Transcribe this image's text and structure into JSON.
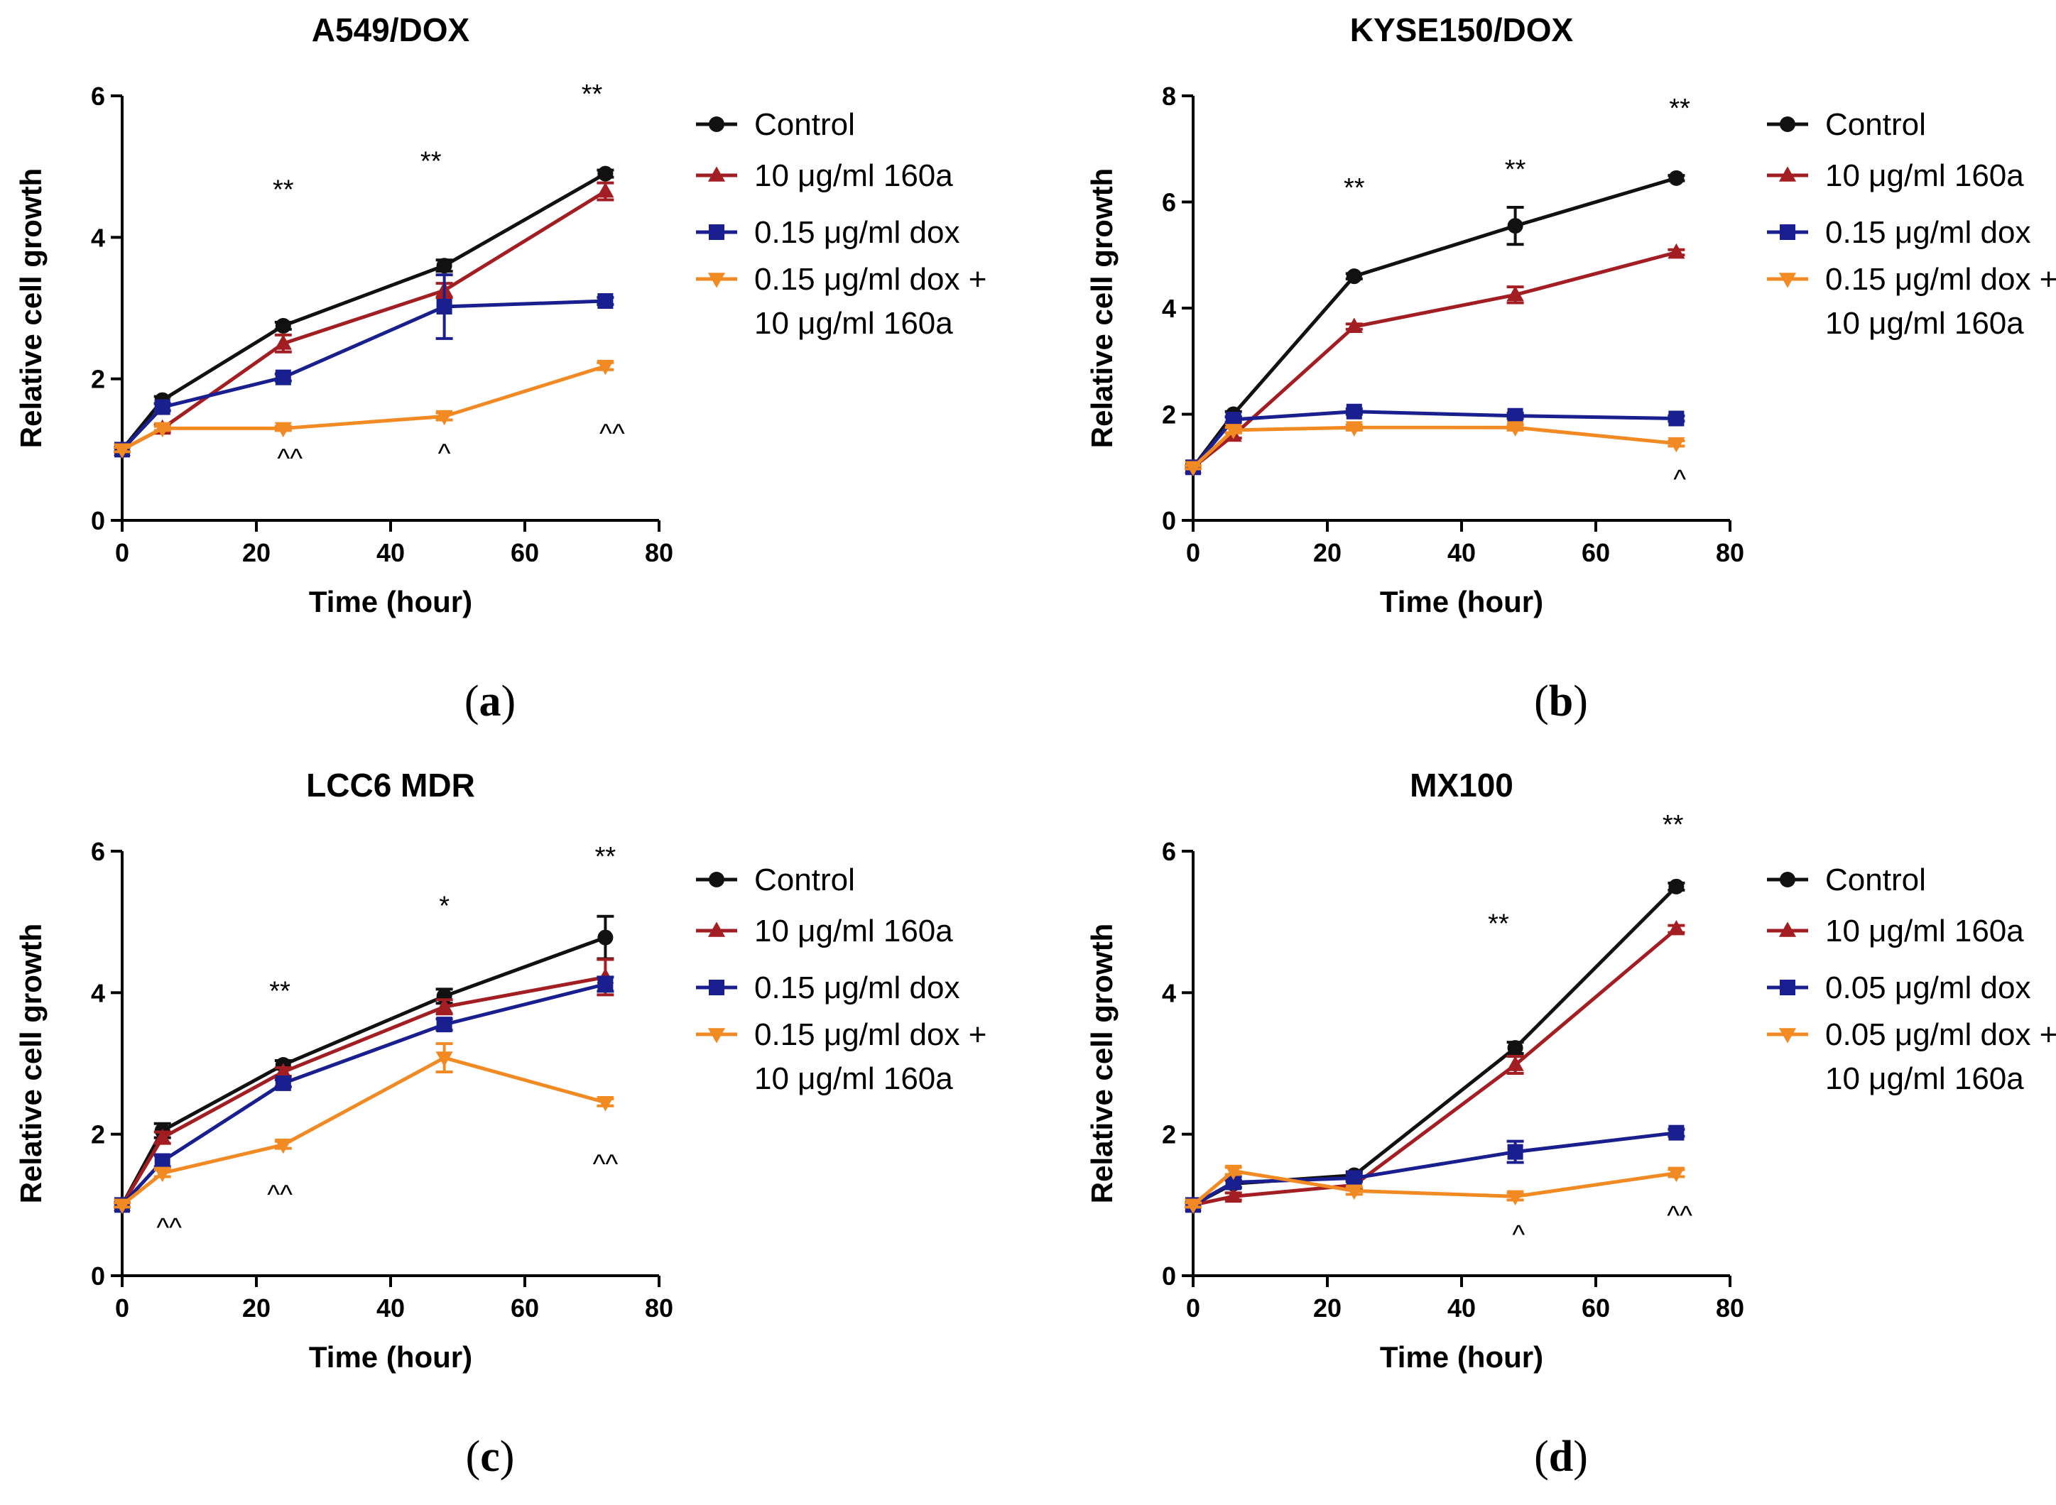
{
  "figure": {
    "colors": {
      "control": "#111111",
      "treat160a": "#a31e22",
      "dox": "#1a1f8f",
      "combo": "#f28a24",
      "axis": "#000000"
    }
  },
  "chart_data": [
    {
      "type": "line",
      "panel_label": "(a)",
      "title": "A549/DOX",
      "xlabel": "Time (hour)",
      "ylabel": "Relative cell growth",
      "xlim": [
        0,
        80
      ],
      "ylim": [
        0,
        6
      ],
      "xticks": [
        0,
        20,
        40,
        60,
        80
      ],
      "yticks": [
        0,
        2,
        4,
        6
      ],
      "x": [
        0,
        6,
        24,
        48,
        72
      ],
      "series": [
        {
          "key": "control",
          "name": "Control",
          "marker": "circle",
          "values": [
            1.0,
            1.7,
            2.75,
            3.6,
            4.9
          ],
          "err": [
            0.03,
            0.05,
            0.05,
            0.08,
            0.05
          ]
        },
        {
          "key": "treat160a",
          "name": "10 μg/ml 160a",
          "marker": "triangle-up",
          "values": [
            1.0,
            1.3,
            2.5,
            3.25,
            4.65
          ],
          "err": [
            0.03,
            0.05,
            0.12,
            0.1,
            0.12
          ]
        },
        {
          "key": "dox",
          "name": "0.15 μg/ml dox",
          "marker": "square",
          "values": [
            1.0,
            1.6,
            2.02,
            3.02,
            3.1
          ],
          "err": [
            0.03,
            0.05,
            0.05,
            0.45,
            0.05
          ]
        },
        {
          "key": "combo",
          "name": "0.15 μg/ml dox +\n10 μg/ml 160a",
          "marker": "triangle-down",
          "values": [
            1.0,
            1.3,
            1.3,
            1.47,
            2.18
          ],
          "err": [
            0.03,
            0.03,
            0.03,
            0.05,
            0.05
          ]
        }
      ],
      "annotations": [
        {
          "text": "**",
          "x": 24,
          "y": 4.55
        },
        {
          "text": "**",
          "x": 46,
          "y": 4.95
        },
        {
          "text": "**",
          "x": 70,
          "y": 5.9
        },
        {
          "text": "^^",
          "x": 25,
          "y": 0.75
        },
        {
          "text": "^",
          "x": 48,
          "y": 0.82
        },
        {
          "text": "^^",
          "x": 73,
          "y": 1.1
        }
      ]
    },
    {
      "type": "line",
      "panel_label": "(b)",
      "title": "KYSE150/DOX",
      "xlabel": "Time (hour)",
      "ylabel": "Relative cell growth",
      "xlim": [
        0,
        80
      ],
      "ylim": [
        0,
        8
      ],
      "xticks": [
        0,
        20,
        40,
        60,
        80
      ],
      "yticks": [
        0,
        2,
        4,
        6,
        8
      ],
      "x": [
        0,
        6,
        24,
        48,
        72
      ],
      "series": [
        {
          "key": "control",
          "name": "Control",
          "marker": "circle",
          "values": [
            1.0,
            2.0,
            4.6,
            5.55,
            6.45
          ],
          "err": [
            0.03,
            0.05,
            0.05,
            0.35,
            0.05
          ]
        },
        {
          "key": "treat160a",
          "name": "10 μg/ml 160a",
          "marker": "triangle-up",
          "values": [
            1.0,
            1.6,
            3.65,
            4.25,
            5.05
          ],
          "err": [
            0.03,
            0.05,
            0.05,
            0.15,
            0.05
          ]
        },
        {
          "key": "dox",
          "name": "0.15 μg/ml dox",
          "marker": "square",
          "values": [
            1.0,
            1.9,
            2.05,
            1.97,
            1.92
          ],
          "err": [
            0.03,
            0.05,
            0.05,
            0.05,
            0.05
          ]
        },
        {
          "key": "combo",
          "name": "0.15 μg/ml dox +\n10 μg/ml 160a",
          "marker": "triangle-down",
          "values": [
            1.0,
            1.7,
            1.75,
            1.75,
            1.45
          ],
          "err": [
            0.03,
            0.05,
            0.05,
            0.05,
            0.05
          ]
        }
      ],
      "annotations": [
        {
          "text": "**",
          "x": 24,
          "y": 6.1
        },
        {
          "text": "**",
          "x": 48,
          "y": 6.45
        },
        {
          "text": "**",
          "x": 72.5,
          "y": 7.6
        },
        {
          "text": "^",
          "x": 72.5,
          "y": 0.6
        }
      ]
    },
    {
      "type": "line",
      "panel_label": "(c)",
      "title": "LCC6 MDR",
      "xlabel": "Time (hour)",
      "ylabel": "Relative cell growth",
      "xlim": [
        0,
        80
      ],
      "ylim": [
        0,
        6
      ],
      "xticks": [
        0,
        20,
        40,
        60,
        80
      ],
      "yticks": [
        0,
        2,
        4,
        6
      ],
      "x": [
        0,
        6,
        24,
        48,
        72
      ],
      "series": [
        {
          "key": "control",
          "name": "Control",
          "marker": "circle",
          "values": [
            1.0,
            2.05,
            2.98,
            3.95,
            4.78
          ],
          "err": [
            0.03,
            0.1,
            0.06,
            0.1,
            0.3
          ]
        },
        {
          "key": "treat160a",
          "name": "10 μg/ml 160a",
          "marker": "triangle-up",
          "values": [
            1.0,
            1.95,
            2.88,
            3.8,
            4.22
          ],
          "err": [
            0.03,
            0.08,
            0.06,
            0.1,
            0.25
          ]
        },
        {
          "key": "dox",
          "name": "0.15 μg/ml dox",
          "marker": "square",
          "values": [
            1.0,
            1.62,
            2.72,
            3.55,
            4.12
          ],
          "err": [
            0.03,
            0.08,
            0.05,
            0.08,
            0.1
          ]
        },
        {
          "key": "combo",
          "name": "0.15 μg/ml dox +\n10 μg/ml 160a",
          "marker": "triangle-down",
          "values": [
            1.0,
            1.45,
            1.85,
            3.08,
            2.45
          ],
          "err": [
            0.03,
            0.05,
            0.05,
            0.2,
            0.05
          ]
        }
      ],
      "annotations": [
        {
          "text": "**",
          "x": 23.5,
          "y": 3.9
        },
        {
          "text": "*",
          "x": 48,
          "y": 5.1
        },
        {
          "text": "**",
          "x": 72,
          "y": 5.8
        },
        {
          "text": "^^",
          "x": 7,
          "y": 0.55
        },
        {
          "text": "^^",
          "x": 23.5,
          "y": 1.02
        },
        {
          "text": "^^",
          "x": 72,
          "y": 1.45
        }
      ]
    },
    {
      "type": "line",
      "panel_label": "(d)",
      "title": "MX100",
      "xlabel": "Time (hour)",
      "ylabel": "Relative cell growth",
      "xlim": [
        0,
        80
      ],
      "ylim": [
        0,
        6
      ],
      "xticks": [
        0,
        20,
        40,
        60,
        80
      ],
      "yticks": [
        0,
        2,
        4,
        6
      ],
      "x": [
        0,
        6,
        24,
        48,
        72
      ],
      "series": [
        {
          "key": "control",
          "name": "Control",
          "marker": "circle",
          "values": [
            1.0,
            1.3,
            1.42,
            3.22,
            5.5
          ],
          "err": [
            0.03,
            0.05,
            0.05,
            0.08,
            0.05
          ]
        },
        {
          "key": "treat160a",
          "name": "10 μg/ml 160a",
          "marker": "triangle-up",
          "values": [
            1.0,
            1.12,
            1.28,
            2.98,
            4.9
          ],
          "err": [
            0.03,
            0.05,
            0.05,
            0.12,
            0.05
          ]
        },
        {
          "key": "dox",
          "name": "0.05 μg/ml dox",
          "marker": "square",
          "values": [
            1.0,
            1.32,
            1.38,
            1.75,
            2.02
          ],
          "err": [
            0.03,
            0.08,
            0.05,
            0.15,
            0.05
          ]
        },
        {
          "key": "combo",
          "name": "0.05 μg/ml dox +\n10 μg/ml 160a",
          "marker": "triangle-down",
          "values": [
            1.0,
            1.48,
            1.2,
            1.12,
            1.45
          ],
          "err": [
            0.03,
            0.05,
            0.05,
            0.05,
            0.05
          ]
        }
      ],
      "annotations": [
        {
          "text": "**",
          "x": 45.5,
          "y": 4.85
        },
        {
          "text": "**",
          "x": 71.5,
          "y": 6.25
        },
        {
          "text": "^",
          "x": 48.5,
          "y": 0.45
        },
        {
          "text": "^^",
          "x": 72.5,
          "y": 0.72
        }
      ]
    }
  ]
}
